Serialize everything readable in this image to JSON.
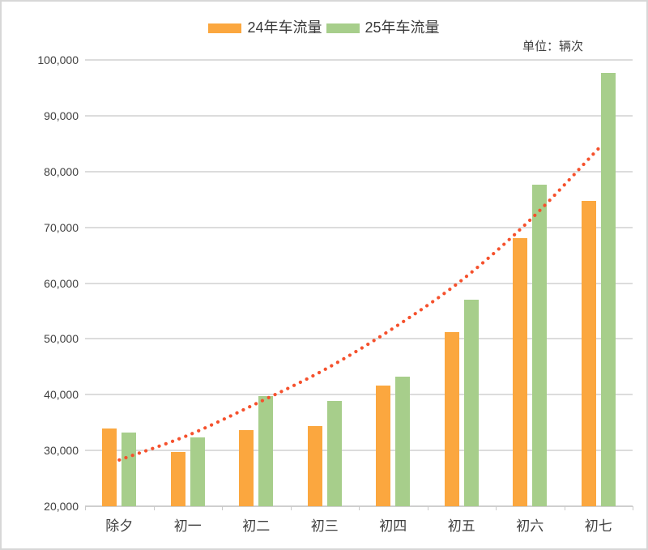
{
  "unit_note": "单位：辆次",
  "colors": {
    "series_2024": "#fba73f",
    "series_2025": "#a7ce8b",
    "trendline": "#f5512d",
    "gridline": "#dcdcdc",
    "axis": "#cfcfcf",
    "axis_text": "#404040",
    "legend_text": "#3a3a3a",
    "card_border": "#d7d7d7",
    "background": "#ffffff"
  },
  "chart_data": {
    "type": "bar",
    "title": "",
    "xlabel": "",
    "ylabel": "",
    "categories": [
      "除夕",
      "初一",
      "初二",
      "初三",
      "初四",
      "初五",
      "初六",
      "初七"
    ],
    "series": [
      {
        "name": "24年车流量",
        "color": "#fba73f",
        "values": [
          34000,
          29700,
          33700,
          34400,
          41600,
          51200,
          68100,
          74800
        ]
      },
      {
        "name": "25年车流量",
        "color": "#a7ce8b",
        "values": [
          33200,
          32400,
          39800,
          38900,
          43200,
          57000,
          77700,
          97700
        ]
      }
    ],
    "trendline": {
      "style": "dotted",
      "color": "#f5512d",
      "values": [
        28300,
        32700,
        38400,
        44500,
        51900,
        60500,
        71300,
        84100
      ]
    },
    "ylim": [
      20000,
      100000
    ],
    "y_tick_step": 10000,
    "y_tick_labels": [
      "20,000",
      "30,000",
      "40,000",
      "50,000",
      "60,000",
      "70,000",
      "80,000",
      "90,000",
      "100,000"
    ],
    "grid": "horizontal",
    "legend_position": "top-center"
  }
}
